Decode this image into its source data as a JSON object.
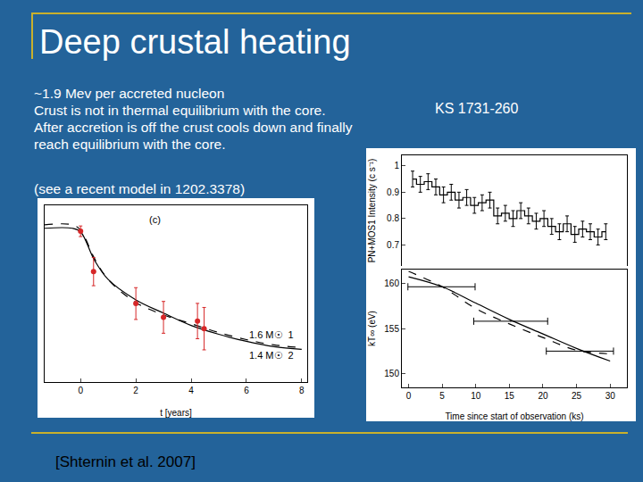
{
  "slide": {
    "title": "Deep crustal heating",
    "bullets": [
      "~1.9 Mev per accreted nucleon",
      "Crust is not in thermal equilibrium with the core.",
      "After accretion is off the crust cools down and finally reach equilibrium with the core."
    ],
    "note": "(see a recent model in 1202.3378)",
    "object_label": "KS 1731-260",
    "citation": "[Shternin et al. 2007]"
  },
  "chart_data": [
    {
      "type": "line",
      "xlabel": "t [years]",
      "xlim": [
        -1.3,
        8.2
      ],
      "xticks": [
        0,
        2,
        4,
        6,
        8
      ],
      "ylim": [
        0,
        100
      ],
      "tick_labels": "x",
      "annotations": [
        {
          "text": "(c)",
          "x": 2.7,
          "y": 92
        },
        {
          "text": "1.6 M☉  1",
          "x": 6.9,
          "y": 27
        },
        {
          "text": "1.4 M☉  2",
          "x": 6.9,
          "y": 15
        }
      ],
      "series": [
        {
          "type": "line",
          "line_style": "solid",
          "color": "#000000",
          "x": [
            -1.3,
            -0.3,
            0,
            0.5,
            1,
            2,
            3,
            4,
            5,
            6,
            7,
            8
          ],
          "values": [
            87,
            87,
            85,
            69,
            58,
            46.5,
            39,
            32,
            27,
            23,
            20,
            18.5
          ]
        },
        {
          "type": "line",
          "line_style": "dashed",
          "color": "#000000",
          "x": [
            -1.3,
            -0.3,
            0,
            0.5,
            1,
            2,
            3,
            4,
            5,
            6,
            7,
            8
          ],
          "values": [
            89,
            89,
            86,
            70,
            58,
            45,
            38,
            33,
            28,
            24,
            21,
            19.5
          ]
        },
        {
          "type": "scatter",
          "marker": "circle",
          "color": "#d62728",
          "x": [
            0,
            0.47,
            2.0,
            3.0,
            4.23,
            4.47
          ],
          "values": [
            85.3,
            62.5,
            44.4,
            36.6,
            34.5,
            30.2
          ],
          "errors": [
            3,
            8,
            9,
            9,
            10,
            12
          ]
        }
      ]
    },
    {
      "type": "line",
      "ylabel": "PN+MOS1 Intensity (c s⁻¹)",
      "xlim": [
        -1,
        32.5
      ],
      "ylim": [
        0.62,
        1.04
      ],
      "yticks": [
        0.7,
        0.8,
        0.9,
        1
      ],
      "tick_labels": "y",
      "series": [
        {
          "type": "line",
          "line_style": "steps",
          "color": "#000000",
          "x": [
            0.6,
            1.75,
            2.9,
            4.05,
            5.2,
            6.35,
            7.5,
            8.65,
            9.8,
            10.95,
            12.1,
            13.25,
            14.4,
            15.55,
            16.7,
            17.85,
            19,
            20.15,
            21.3,
            22.45,
            23.6,
            24.75,
            25.9,
            27.05,
            28.2,
            29.35
          ],
          "values": [
            0.95,
            0.93,
            0.94,
            0.92,
            0.89,
            0.9,
            0.87,
            0.88,
            0.85,
            0.86,
            0.87,
            0.81,
            0.82,
            0.8,
            0.83,
            0.81,
            0.79,
            0.8,
            0.77,
            0.75,
            0.78,
            0.74,
            0.76,
            0.75,
            0.73,
            0.75
          ],
          "errors": [
            0.03,
            0.03,
            0.03,
            0.03,
            0.03,
            0.03,
            0.03,
            0.03,
            0.03,
            0.03,
            0.03,
            0.03,
            0.03,
            0.03,
            0.03,
            0.03,
            0.03,
            0.03,
            0.03,
            0.03,
            0.03,
            0.03,
            0.03,
            0.03,
            0.03,
            0.03
          ]
        }
      ]
    },
    {
      "type": "line",
      "xlabel": "Time since start of observation (ks)",
      "ylabel": "kT∞ (eV)",
      "xlim": [
        -1,
        32.5
      ],
      "xticks": [
        0,
        5,
        10,
        15,
        20,
        25,
        30
      ],
      "ylim": [
        148.5,
        161.5
      ],
      "yticks": [
        150,
        155,
        160
      ],
      "series": [
        {
          "type": "line",
          "line_style": "solid",
          "color": "#000000",
          "x": [
            0,
            5,
            10,
            15,
            20,
            25,
            30
          ],
          "values": [
            160.7,
            159.6,
            157.8,
            156,
            154.4,
            152.8,
            151.4
          ]
        },
        {
          "type": "line",
          "line_style": "dashed",
          "color": "#000000",
          "x": [
            0,
            5,
            10,
            15,
            20,
            25,
            30
          ],
          "values": [
            161.3,
            159.6,
            157.2,
            155.5,
            154,
            152.6,
            152.2
          ]
        },
        {
          "type": "scatter",
          "marker": "none",
          "color": "#000000",
          "x": [
            4.9,
            15.2,
            25.5
          ],
          "values": [
            159.6,
            155.8,
            152.5
          ],
          "x_errors": [
            5,
            5.5,
            5
          ]
        }
      ]
    }
  ]
}
